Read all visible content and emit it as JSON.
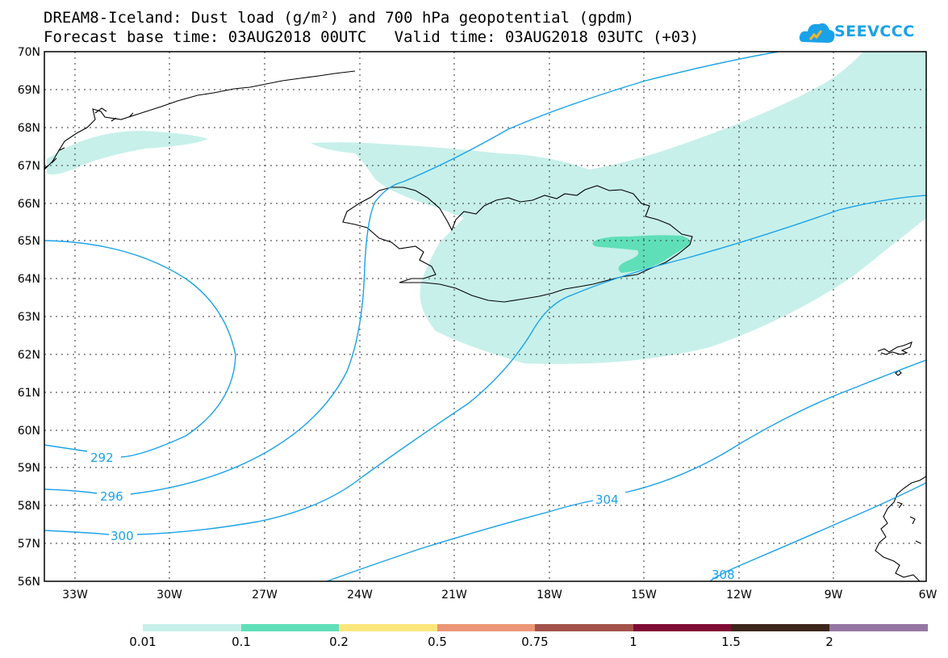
{
  "title": {
    "line1": "DREAM8-Iceland: Dust load (g/m²) and 700 hPa geopotential (gpdm)",
    "line2": "Forecast base time: 03AUG2018 00UTC   Valid time: 03AUG2018 03UTC (+03)"
  },
  "logo": {
    "text": "SEEVCCC",
    "icon": "cloud-logo-icon"
  },
  "map": {
    "lat_labels": [
      "56N",
      "57N",
      "58N",
      "59N",
      "60N",
      "61N",
      "62N",
      "63N",
      "64N",
      "65N",
      "66N",
      "67N",
      "68N",
      "69N",
      "70N"
    ],
    "lon_labels": [
      "33W",
      "30W",
      "27W",
      "24W",
      "21W",
      "18W",
      "15W",
      "12W",
      "9W",
      "6W"
    ],
    "lat_range": [
      56,
      70
    ],
    "lon_range": [
      -34.2,
      -6
    ],
    "contours": [
      {
        "label": "292",
        "color": "#1aa2e8"
      },
      {
        "label": "296",
        "color": "#1aa2e8"
      },
      {
        "label": "300",
        "color": "#1aa2e8"
      },
      {
        "label": "304",
        "color": "#1aa2e8"
      },
      {
        "label": "308",
        "color": "#1aa2e8"
      }
    ]
  },
  "colorbar": {
    "labels": [
      "0.01",
      "0.1",
      "0.2",
      "0.5",
      "0.75",
      "1",
      "1.5",
      "2"
    ],
    "colors": [
      "#c7f0ea",
      "#5fdfb8",
      "#fbe67b",
      "#ec9677",
      "#a3524a",
      "#7e0b33",
      "#3d261c",
      "#9576a2"
    ]
  }
}
